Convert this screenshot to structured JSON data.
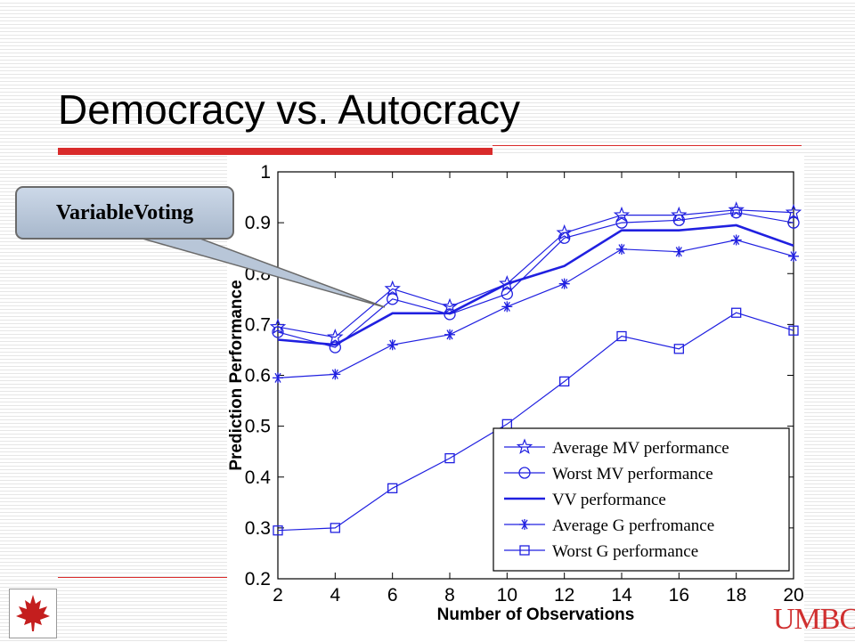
{
  "slide": {
    "title": "Democracy vs. Autocracy",
    "callout_label": "VariableVoting",
    "logo_right_text": "UMBC"
  },
  "chart_data": {
    "type": "line",
    "title": "",
    "xlabel": "Number of Observations",
    "ylabel": "Prediction Performance",
    "x": [
      2,
      4,
      6,
      8,
      10,
      12,
      14,
      16,
      18,
      20
    ],
    "xlim": [
      2,
      20
    ],
    "ylim": [
      0.2,
      1
    ],
    "xticks": [
      "2",
      "4",
      "6",
      "8",
      "10",
      "12",
      "14",
      "16",
      "18",
      "20"
    ],
    "yticks": [
      "0.2",
      "0.3",
      "0.4",
      "0.5",
      "0.6",
      "0.7",
      "0.8",
      "0.9",
      "1"
    ],
    "grid": false,
    "legend_position": "bottom-right",
    "series": [
      {
        "name": "Average MV performance",
        "marker": "star",
        "linewidth": "thin",
        "color": "#2020e0",
        "values": [
          0.695,
          0.675,
          0.77,
          0.735,
          0.78,
          0.88,
          0.915,
          0.915,
          0.925,
          0.92
        ]
      },
      {
        "name": "Worst MV performance",
        "marker": "circle",
        "linewidth": "thin",
        "color": "#2020e0",
        "values": [
          0.685,
          0.655,
          0.75,
          0.72,
          0.76,
          0.87,
          0.9,
          0.905,
          0.92,
          0.9
        ]
      },
      {
        "name": "VV performance",
        "marker": "none",
        "linewidth": "thick",
        "color": "#2020e0",
        "values": [
          0.67,
          0.66,
          0.722,
          0.722,
          0.78,
          0.815,
          0.885,
          0.885,
          0.895,
          0.855
        ]
      },
      {
        "name": "Average G perfromance",
        "marker": "asterisk",
        "linewidth": "thin",
        "color": "#2020e0",
        "values": [
          0.595,
          0.602,
          0.66,
          0.68,
          0.735,
          0.78,
          0.848,
          0.843,
          0.866,
          0.834
        ]
      },
      {
        "name": "Worst G performance",
        "marker": "square",
        "linewidth": "thin",
        "color": "#2020e0",
        "values": [
          0.295,
          0.3,
          0.378,
          0.437,
          0.504,
          0.588,
          0.677,
          0.652,
          0.723,
          0.688
        ]
      }
    ]
  }
}
